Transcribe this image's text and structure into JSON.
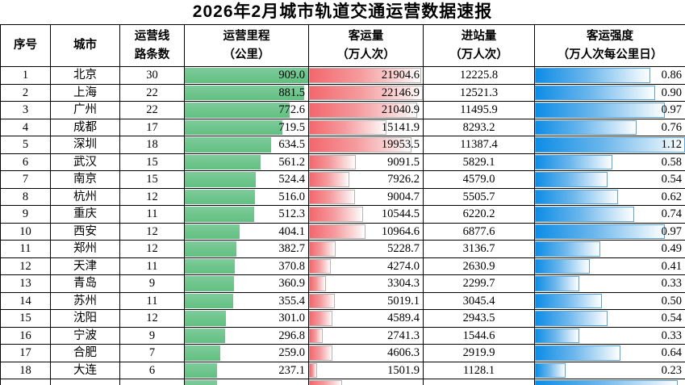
{
  "title": "2026年2月城市轨道交通运营数据速报",
  "header": {
    "seq": "序号",
    "city": "城市",
    "lines": "运营线\n路条数",
    "mileage": "运营里程\n（公里）",
    "passengers": "客运量\n（万人次）",
    "entries": "进站量\n（万人次）",
    "intensity": "客运强度\n（万人次每公里日）"
  },
  "colors": {
    "bar_green": "#6ec58c",
    "bar_red": "#f3676d",
    "bar_blue": "#0d8de6",
    "border": "#000000"
  },
  "chart_data": {
    "type": "table",
    "title": "2026年2月城市轨道交通运营数据速报",
    "columns": [
      "序号",
      "城市",
      "运营线路条数",
      "运营里程（公里）",
      "客运量（万人次）",
      "进站量（万人次）",
      "客运强度（万人次每公里日）"
    ],
    "bar_scales": {
      "mileage_max": 909.0,
      "passengers_max": 22146.9,
      "intensity_max": 1.12
    },
    "rows": [
      {
        "seq": "1",
        "city": "北京",
        "lines": "30",
        "mileage": "909.0",
        "passengers": "21904.6",
        "entries": "12225.8",
        "intensity": "0.86"
      },
      {
        "seq": "2",
        "city": "上海",
        "lines": "22",
        "mileage": "881.5",
        "passengers": "22146.9",
        "entries": "12521.3",
        "intensity": "0.90"
      },
      {
        "seq": "3",
        "city": "广州",
        "lines": "22",
        "mileage": "772.6",
        "passengers": "21040.9",
        "entries": "11495.9",
        "intensity": "0.97"
      },
      {
        "seq": "4",
        "city": "成都",
        "lines": "17",
        "mileage": "719.5",
        "passengers": "15141.9",
        "entries": "8293.2",
        "intensity": "0.76"
      },
      {
        "seq": "5",
        "city": "深圳",
        "lines": "18",
        "mileage": "634.5",
        "passengers": "19953.5",
        "entries": "11387.4",
        "intensity": "1.12"
      },
      {
        "seq": "6",
        "city": "武汉",
        "lines": "15",
        "mileage": "561.2",
        "passengers": "9091.5",
        "entries": "5829.1",
        "intensity": "0.58"
      },
      {
        "seq": "7",
        "city": "南京",
        "lines": "15",
        "mileage": "524.4",
        "passengers": "7926.2",
        "entries": "4579.0",
        "intensity": "0.54"
      },
      {
        "seq": "8",
        "city": "杭州",
        "lines": "12",
        "mileage": "516.0",
        "passengers": "9004.7",
        "entries": "5505.7",
        "intensity": "0.62"
      },
      {
        "seq": "9",
        "city": "重庆",
        "lines": "11",
        "mileage": "512.3",
        "passengers": "10544.5",
        "entries": "6220.2",
        "intensity": "0.74"
      },
      {
        "seq": "10",
        "city": "西安",
        "lines": "12",
        "mileage": "404.1",
        "passengers": "10964.6",
        "entries": "6877.6",
        "intensity": "0.97"
      },
      {
        "seq": "11",
        "city": "郑州",
        "lines": "12",
        "mileage": "382.7",
        "passengers": "5228.7",
        "entries": "3136.7",
        "intensity": "0.49"
      },
      {
        "seq": "12",
        "city": "天津",
        "lines": "11",
        "mileage": "370.8",
        "passengers": "4274.0",
        "entries": "2630.9",
        "intensity": "0.41"
      },
      {
        "seq": "13",
        "city": "青岛",
        "lines": "9",
        "mileage": "360.9",
        "passengers": "3304.3",
        "entries": "2299.7",
        "intensity": "0.33"
      },
      {
        "seq": "14",
        "city": "苏州",
        "lines": "11",
        "mileage": "355.4",
        "passengers": "5019.1",
        "entries": "3045.4",
        "intensity": "0.50"
      },
      {
        "seq": "15",
        "city": "沈阳",
        "lines": "12",
        "mileage": "301.0",
        "passengers": "4589.4",
        "entries": "2943.5",
        "intensity": "0.54"
      },
      {
        "seq": "16",
        "city": "宁波",
        "lines": "9",
        "mileage": "296.8",
        "passengers": "2741.3",
        "entries": "1544.6",
        "intensity": "0.33"
      },
      {
        "seq": "17",
        "city": "合肥",
        "lines": "7",
        "mileage": "259.0",
        "passengers": "4606.3",
        "entries": "2919.9",
        "intensity": "0.64"
      },
      {
        "seq": "18",
        "city": "大连",
        "lines": "6",
        "mileage": "237.1",
        "passengers": "1501.9",
        "entries": "1128.1",
        "intensity": "0.23"
      }
    ],
    "partial_row_clipped": {
      "note": "19th row cut off at bottom edge; only bar tops visible, no readable text",
      "mileage_bar_pct": 26,
      "passengers_bar_pct": 29,
      "intensity_bar_pct": 95
    }
  }
}
